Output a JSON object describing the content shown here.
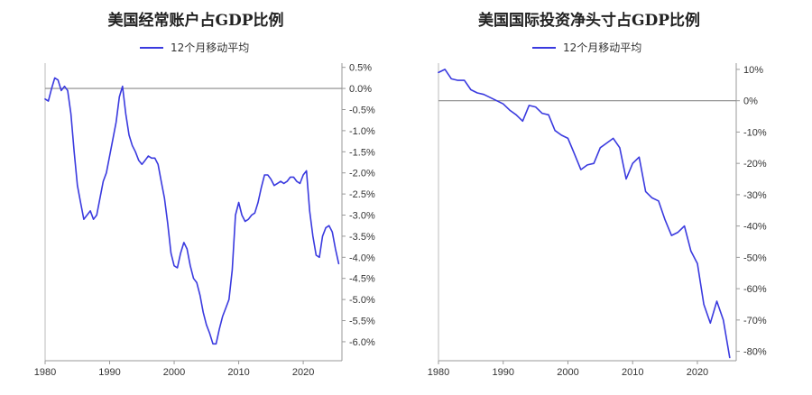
{
  "chart_data": [
    {
      "type": "line",
      "title": "美国经常账户占GDP比例",
      "legend": "12个月移动平均",
      "color": "#3a3adf",
      "xlim": [
        1980,
        2026
      ],
      "ylim": [
        -6.45,
        0.6
      ],
      "x_ticks": [
        1980,
        1990,
        2000,
        2010,
        2020
      ],
      "y_ticks": [
        0.5,
        0.0,
        -0.5,
        -1.0,
        -1.5,
        -2.0,
        -2.5,
        -3.0,
        -3.5,
        -4.0,
        -4.5,
        -5.0,
        -5.5,
        -6.0
      ],
      "y_tick_labels": [
        "0.5%",
        "0.0%",
        "-0.5%",
        "-1.0%",
        "-1.5%",
        "-2.0%",
        "-2.5%",
        "-3.0%",
        "-3.5%",
        "-4.0%",
        "-4.5%",
        "-5.0%",
        "-5.5%",
        "-6.0%"
      ],
      "reference_line": 0,
      "series": [
        {
          "x": [
            1980.0,
            1980.5,
            1981.0,
            1981.5,
            1982.0,
            1982.5,
            1983.0,
            1983.5,
            1984.0,
            1984.5,
            1985.0,
            1985.5,
            1986.0,
            1986.5,
            1987.0,
            1987.5,
            1988.0,
            1988.5,
            1989.0,
            1989.5,
            1990.0,
            1990.5,
            1991.0,
            1991.5,
            1992.0,
            1992.5,
            1993.0,
            1993.5,
            1994.0,
            1994.5,
            1995.0,
            1995.5,
            1996.0,
            1996.5,
            1997.0,
            1997.5,
            1998.0,
            1998.5,
            1999.0,
            1999.5,
            2000.0,
            2000.5,
            2001.0,
            2001.5,
            2002.0,
            2002.5,
            2003.0,
            2003.5,
            2004.0,
            2004.5,
            2005.0,
            2005.5,
            2006.0,
            2006.5,
            2007.0,
            2007.5,
            2008.0,
            2008.5,
            2009.0,
            2009.5,
            2010.0,
            2010.5,
            2011.0,
            2011.5,
            2012.0,
            2012.5,
            2013.0,
            2013.5,
            2014.0,
            2014.5,
            2015.0,
            2015.5,
            2016.0,
            2016.5,
            2017.0,
            2017.5,
            2018.0,
            2018.5,
            2019.0,
            2019.5,
            2020.0,
            2020.5,
            2021.0,
            2021.5,
            2022.0,
            2022.5,
            2023.0,
            2023.5,
            2024.0,
            2024.5,
            2025.0,
            2025.5
          ],
          "y": [
            -0.25,
            -0.3,
            0.0,
            0.25,
            0.2,
            -0.05,
            0.05,
            -0.05,
            -0.6,
            -1.5,
            -2.3,
            -2.7,
            -3.1,
            -3.0,
            -2.9,
            -3.1,
            -3.0,
            -2.6,
            -2.2,
            -2.0,
            -1.6,
            -1.2,
            -0.8,
            -0.2,
            0.05,
            -0.6,
            -1.1,
            -1.35,
            -1.5,
            -1.7,
            -1.8,
            -1.7,
            -1.6,
            -1.65,
            -1.65,
            -1.8,
            -2.2,
            -2.6,
            -3.2,
            -3.9,
            -4.2,
            -4.25,
            -3.9,
            -3.65,
            -3.8,
            -4.2,
            -4.5,
            -4.6,
            -4.9,
            -5.3,
            -5.6,
            -5.8,
            -6.05,
            -6.05,
            -5.7,
            -5.4,
            -5.2,
            -5.0,
            -4.3,
            -3.0,
            -2.7,
            -3.0,
            -3.15,
            -3.1,
            -3.0,
            -2.95,
            -2.7,
            -2.35,
            -2.05,
            -2.05,
            -2.15,
            -2.3,
            -2.25,
            -2.2,
            -2.25,
            -2.2,
            -2.1,
            -2.1,
            -2.2,
            -2.25,
            -2.05,
            -1.95,
            -2.9,
            -3.5,
            -3.95,
            -4.0,
            -3.5,
            -3.3,
            -3.25,
            -3.4,
            -3.8,
            -4.15
          ]
        }
      ]
    },
    {
      "type": "line",
      "title": "美国国际投资净头寸占GDP比例",
      "legend": "12个月移动平均",
      "color": "#3a3adf",
      "xlim": [
        1980,
        2026
      ],
      "ylim": [
        -83,
        12
      ],
      "x_ticks": [
        1980,
        1990,
        2000,
        2010,
        2020
      ],
      "y_ticks": [
        10,
        0,
        -10,
        -20,
        -30,
        -40,
        -50,
        -60,
        -70,
        -80
      ],
      "y_tick_labels": [
        "10%",
        "0%",
        "-10%",
        "-20%",
        "-30%",
        "-40%",
        "-50%",
        "-60%",
        "-70%",
        "-80%"
      ],
      "reference_line": 0,
      "series": [
        {
          "x": [
            1980,
            1981,
            1982,
            1983,
            1984,
            1985,
            1986,
            1987,
            1988,
            1989,
            1990,
            1991,
            1992,
            1993,
            1994,
            1995,
            1996,
            1997,
            1998,
            1999,
            2000,
            2001,
            2002,
            2003,
            2004,
            2005,
            2006,
            2007,
            2008,
            2009,
            2010,
            2011,
            2012,
            2013,
            2014,
            2015,
            2016,
            2017,
            2018,
            2019,
            2020,
            2021,
            2022,
            2023,
            2024,
            2025
          ],
          "y": [
            9,
            10,
            7,
            6.5,
            6.5,
            3.5,
            2.5,
            2,
            1,
            0,
            -1,
            -3,
            -4.5,
            -6.5,
            -1.5,
            -2,
            -4,
            -4.5,
            -9.5,
            -11,
            -12,
            -17,
            -22,
            -20.5,
            -20,
            -15,
            -13.5,
            -12,
            -15,
            -25,
            -20,
            -18,
            -29,
            -31,
            -32,
            -38,
            -43,
            -42,
            -40,
            -48,
            -52,
            -65,
            -71,
            -64,
            -70,
            -82
          ]
        }
      ]
    }
  ]
}
